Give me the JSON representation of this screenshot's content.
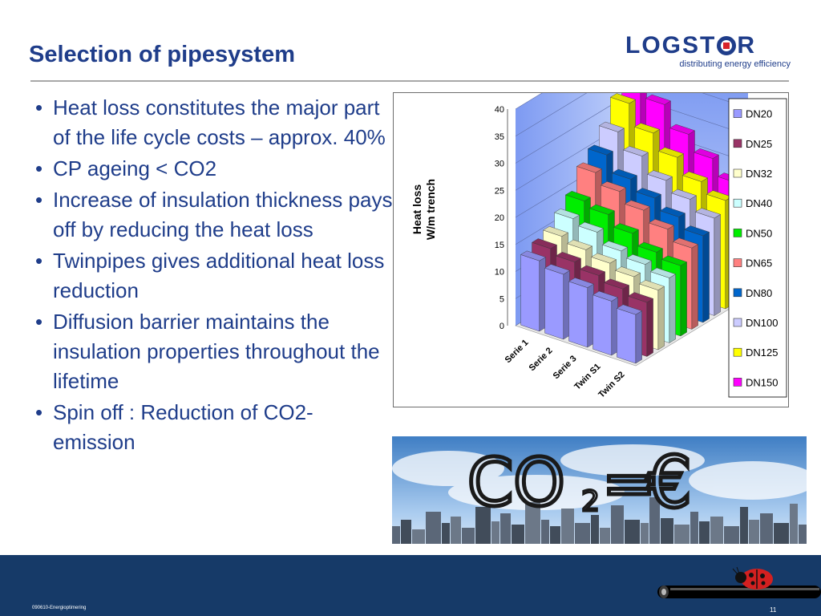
{
  "slide": {
    "title": "Selection of pipesystem",
    "page_number": "11",
    "footer_label": "090610-Energioptimering"
  },
  "logo": {
    "word_left": "LOGST",
    "word_right": "R",
    "tagline": "distributing energy efficiency",
    "colors": {
      "blue": "#1f3d8a",
      "red": "#d8232a"
    }
  },
  "bullets": [
    "Heat loss constitutes the major part of the life cycle costs – approx. 40%",
    "CP ageing < CO2",
    "Increase of insulation thickness pays off by reducing the heat loss",
    "Twinpipes gives additional heat loss reduction",
    "Diffusion barrier maintains the insulation properties throughout the lifetime",
    "Spin off : Reduction of CO2-emission"
  ],
  "chart_data": {
    "type": "bar",
    "variant": "3d-clustered",
    "ylabel_lines": [
      "Heat loss",
      "W/m trench"
    ],
    "ylim": [
      0,
      40
    ],
    "yticks": [
      0,
      5,
      10,
      15,
      20,
      25,
      30,
      35,
      40
    ],
    "categories": [
      "Serie 1",
      "Serie 2",
      "Serie 3",
      "Twin S1",
      "Twin S2"
    ],
    "legend_position": "right",
    "grid": true,
    "series": [
      {
        "name": "DN20",
        "color": "#9a9aff",
        "values": [
          13,
          12,
          11,
          10,
          9
        ]
      },
      {
        "name": "DN25",
        "color": "#993366",
        "values": [
          14,
          13,
          12,
          11,
          10
        ]
      },
      {
        "name": "DN32",
        "color": "#ffffcc",
        "values": [
          15,
          14,
          13,
          12,
          11
        ]
      },
      {
        "name": "DN40",
        "color": "#ccffff",
        "values": [
          17,
          16,
          14,
          13,
          12
        ]
      },
      {
        "name": "DN50",
        "color": "#00ee00",
        "values": [
          19,
          18,
          16,
          14,
          13
        ]
      },
      {
        "name": "DN65",
        "color": "#ff8080",
        "values": [
          23,
          21,
          19,
          17,
          15
        ]
      },
      {
        "name": "DN80",
        "color": "#0066cc",
        "values": [
          25,
          22,
          20,
          18,
          16
        ]
      },
      {
        "name": "DN100",
        "color": "#ccccff",
        "values": [
          28,
          25,
          22,
          20,
          18
        ]
      },
      {
        "name": "DN125",
        "color": "#ffff00",
        "values": [
          32,
          28,
          25,
          22,
          20
        ]
      },
      {
        "name": "DN150",
        "color": "#ff00ff",
        "values": [
          37,
          32,
          28,
          25,
          22
        ]
      }
    ]
  },
  "photo": {
    "text_co": "CO",
    "text_sub": "2",
    "text_eq": "=",
    "text_euro": "€"
  }
}
